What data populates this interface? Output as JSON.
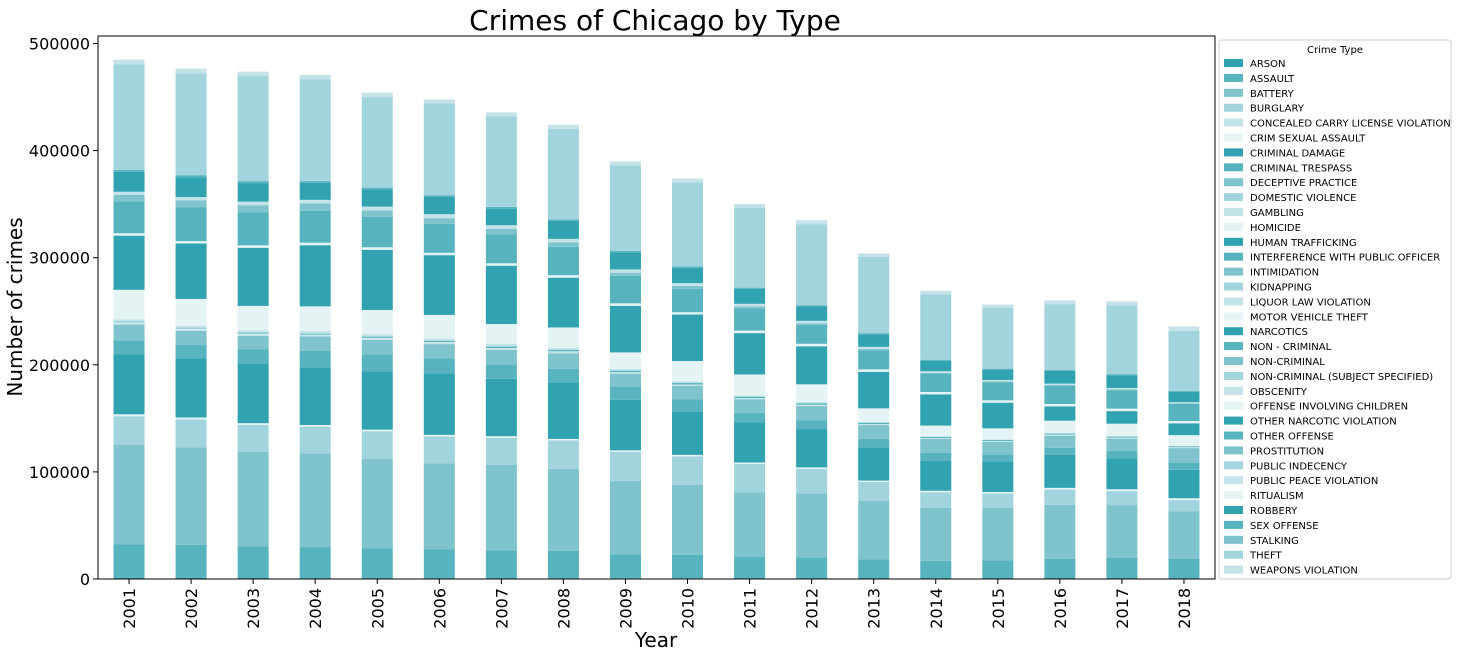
{
  "chart_data": {
    "type": "bar",
    "stacked": true,
    "title": "Crimes of Chicago by Type",
    "xlabel": "Year",
    "ylabel": "Number of crimes",
    "ylim": [
      0,
      507000
    ],
    "yticks": [
      0,
      100000,
      200000,
      300000,
      400000,
      500000
    ],
    "grid": false,
    "legend": {
      "title": "Crime Type",
      "placement": "right, outside plot"
    },
    "categories": [
      "2001",
      "2002",
      "2003",
      "2004",
      "2005",
      "2006",
      "2007",
      "2008",
      "2009",
      "2010",
      "2011",
      "2012",
      "2013",
      "2014",
      "2015",
      "2016",
      "2017",
      "2018"
    ],
    "series": [
      {
        "name": "ARSON",
        "color": "#30a2b0",
        "values": [
          1000,
          1000,
          900,
          800,
          800,
          800,
          800,
          800,
          700,
          600,
          500,
          500,
          400,
          400,
          400,
          400,
          400,
          350
        ]
      },
      {
        "name": "ASSAULT",
        "color": "#57b3be",
        "values": [
          31500,
          31000,
          29500,
          29000,
          27700,
          26800,
          26000,
          25500,
          22500,
          21900,
          20400,
          19800,
          17900,
          16500,
          17000,
          18500,
          19200,
          18400
        ]
      },
      {
        "name": "BATTERY",
        "color": "#7fc3cd",
        "values": [
          93000,
          91000,
          88500,
          87500,
          83500,
          80500,
          80000,
          76500,
          68500,
          65500,
          60000,
          59700,
          54500,
          49500,
          49200,
          50400,
          49400,
          44600
        ]
      },
      {
        "name": "BURGLARY",
        "color": "#a2d4dd",
        "values": [
          26500,
          26000,
          25000,
          25000,
          26000,
          25000,
          25000,
          26500,
          27000,
          26500,
          26500,
          22800,
          17900,
          14600,
          13200,
          14200,
          13000,
          10300
        ]
      },
      {
        "name": "CONCEALED CARRY LICENSE VIOLATION",
        "color": "#c3e3e8",
        "values": [
          0,
          0,
          0,
          0,
          0,
          0,
          0,
          0,
          0,
          0,
          0,
          0,
          0,
          100,
          150,
          200,
          250,
          350
        ]
      },
      {
        "name": "CRIM SEXUAL ASSAULT",
        "color": "#e4f4f5",
        "values": [
          1800,
          1800,
          1600,
          1500,
          1500,
          1500,
          1500,
          1500,
          1400,
          1400,
          1400,
          1400,
          1200,
          1300,
          1300,
          1400,
          1500,
          1400
        ]
      },
      {
        "name": "CRIMINAL DAMAGE",
        "color": "#30a2b0",
        "values": [
          55800,
          55200,
          55300,
          53800,
          54300,
          57200,
          53700,
          52800,
          47200,
          40600,
          37300,
          35800,
          30800,
          27800,
          28700,
          31000,
          29000,
          26500
        ]
      },
      {
        "name": "CRIMINAL TRESPASS",
        "color": "#57b3be",
        "values": [
          13200,
          12500,
          13800,
          15400,
          16000,
          14000,
          13400,
          12800,
          12000,
          11400,
          9000,
          8300,
          8200,
          7500,
          6500,
          6300,
          6900,
          6400
        ]
      },
      {
        "name": "DECEPTIVE PRACTICE",
        "color": "#7fc3cd",
        "values": [
          14900,
          13200,
          12500,
          13500,
          13500,
          13500,
          13400,
          14400,
          12300,
          12500,
          12500,
          13200,
          12800,
          13000,
          11600,
          11500,
          11500,
          13900
        ]
      },
      {
        "name": "DOMESTIC VIOLENCE",
        "color": "#a2d4dd",
        "values": [
          0,
          0,
          0,
          0,
          0,
          0,
          0,
          0,
          0,
          0,
          0,
          0,
          0,
          0,
          0,
          0,
          0,
          0
        ]
      },
      {
        "name": "GAMBLING",
        "color": "#c3e3e8",
        "values": [
          900,
          1000,
          1100,
          1200,
          1400,
          1400,
          1400,
          1200,
          900,
          700,
          700,
          600,
          400,
          300,
          200,
          200,
          200,
          150
        ]
      },
      {
        "name": "HOMICIDE",
        "color": "#e4f4f5",
        "values": [
          700,
          650,
          600,
          450,
          450,
          470,
          450,
          510,
          460,
          440,
          440,
          510,
          420,
          420,
          500,
          780,
          670,
          590
        ]
      },
      {
        "name": "HUMAN TRAFFICKING",
        "color": "#30a2b0",
        "values": [
          0,
          0,
          0,
          0,
          0,
          0,
          0,
          0,
          0,
          0,
          0,
          10,
          15,
          15,
          10,
          15,
          15,
          10
        ]
      },
      {
        "name": "INTERFERENCE WITH PUBLIC OFFICER",
        "color": "#57b3be",
        "values": [
          300,
          350,
          600,
          750,
          1000,
          1100,
          1300,
          1400,
          1500,
          1400,
          1400,
          1300,
          1200,
          1100,
          1000,
          900,
          900,
          850
        ]
      },
      {
        "name": "INTIMIDATION",
        "color": "#7fc3cd",
        "values": [
          200,
          200,
          200,
          200,
          200,
          200,
          200,
          200,
          170,
          160,
          150,
          150,
          140,
          140,
          140,
          160,
          170,
          170
        ]
      },
      {
        "name": "KIDNAPPING",
        "color": "#a2d4dd",
        "values": [
          1100,
          1100,
          1000,
          850,
          750,
          600,
          500,
          450,
          350,
          330,
          300,
          300,
          240,
          200,
          190,
          170,
          200,
          160
        ]
      },
      {
        "name": "LIQUOR LAW VIOLATION",
        "color": "#c3e3e8",
        "values": [
          1600,
          1400,
          1600,
          1800,
          1600,
          1700,
          1800,
          1400,
          1200,
          1100,
          1000,
          900,
          600,
          500,
          500,
          400,
          300,
          300
        ]
      },
      {
        "name": "MOTOR VEHICLE THEFT",
        "color": "#e4f4f5",
        "values": [
          27500,
          25100,
          22800,
          22800,
          22500,
          21800,
          18600,
          18900,
          15400,
          19000,
          19400,
          16500,
          12600,
          9900,
          10100,
          11300,
          11400,
          9900
        ]
      },
      {
        "name": "NARCOTICS",
        "color": "#30a2b0",
        "values": [
          50600,
          51800,
          54300,
          57100,
          56200,
          55800,
          54500,
          46500,
          43500,
          43400,
          38600,
          35500,
          34100,
          29100,
          23900,
          13300,
          11700,
          11000
        ]
      },
      {
        "name": "NON - CRIMINAL",
        "color": "#57b3be",
        "values": [
          0,
          0,
          0,
          0,
          0,
          0,
          0,
          0,
          0,
          0,
          0,
          10,
          10,
          5,
          0,
          0,
          0,
          0
        ]
      },
      {
        "name": "NON-CRIMINAL",
        "color": "#7fc3cd",
        "values": [
          0,
          0,
          0,
          0,
          0,
          0,
          0,
          0,
          0,
          0,
          0,
          0,
          50,
          80,
          100,
          120,
          90,
          100
        ]
      },
      {
        "name": "NON-CRIMINAL (SUBJECT SPECIFIED)",
        "color": "#a2d4dd",
        "values": [
          0,
          0,
          0,
          0,
          0,
          0,
          0,
          0,
          0,
          0,
          0,
          5,
          5,
          5,
          5,
          5,
          5,
          5
        ]
      },
      {
        "name": "OBSCENITY",
        "color": "#c3e3e8",
        "values": [
          30,
          20,
          20,
          30,
          30,
          30,
          30,
          30,
          20,
          30,
          30,
          30,
          30,
          20,
          40,
          50,
          60,
          60
        ]
      },
      {
        "name": "OFFENSE INVOLVING CHILDREN",
        "color": "#e4f4f5",
        "values": [
          2200,
          2100,
          2200,
          2300,
          2300,
          2200,
          2200,
          2300,
          2300,
          2100,
          2300,
          2300,
          2200,
          2100,
          2100,
          2100,
          2200,
          2000
        ]
      },
      {
        "name": "OTHER NARCOTIC VIOLATION",
        "color": "#30a2b0",
        "values": [
          10,
          10,
          10,
          10,
          10,
          10,
          10,
          10,
          10,
          10,
          10,
          10,
          10,
          10,
          10,
          10,
          10,
          10
        ]
      },
      {
        "name": "OTHER OFFENSE",
        "color": "#57b3be",
        "values": [
          29700,
          31800,
          31000,
          29700,
          28300,
          27100,
          26900,
          26500,
          25600,
          22000,
          20600,
          17500,
          17600,
          16800,
          17000,
          17100,
          17300,
          15900
        ]
      },
      {
        "name": "PROSTITUTION",
        "color": "#7fc3cd",
        "values": [
          6000,
          6400,
          6500,
          6900,
          6100,
          5200,
          5100,
          4100,
          3000,
          2500,
          2000,
          1600,
          1400,
          1000,
          600,
          600,
          700,
          500
        ]
      },
      {
        "name": "PUBLIC INDECENCY",
        "color": "#a2d4dd",
        "values": [
          20,
          20,
          20,
          20,
          20,
          20,
          20,
          20,
          20,
          20,
          20,
          20,
          20,
          20,
          20,
          20,
          20,
          20
        ]
      },
      {
        "name": "PUBLIC PEACE VIOLATION",
        "color": "#c3e3e8",
        "values": [
          3000,
          3000,
          3300,
          3400,
          3600,
          3700,
          3500,
          3300,
          3000,
          2700,
          2400,
          2300,
          2000,
          1600,
          1400,
          1300,
          1300,
          1200
        ]
      },
      {
        "name": "RITUALISM",
        "color": "#e4f4f5",
        "values": [
          10,
          5,
          5,
          5,
          5,
          5,
          5,
          5,
          5,
          5,
          5,
          5,
          5,
          5,
          5,
          5,
          5,
          5
        ]
      },
      {
        "name": "ROBBERY",
        "color": "#30a2b0",
        "values": [
          18500,
          18500,
          17300,
          15800,
          16000,
          16000,
          15500,
          16700,
          15900,
          14300,
          13900,
          13500,
          11800,
          9800,
          9600,
          11900,
          11900,
          9600
        ]
      },
      {
        "name": "SEX OFFENSE",
        "color": "#57b3be",
        "values": [
          2000,
          1900,
          1800,
          1700,
          1600,
          1500,
          1500,
          1400,
          1300,
          1200,
          1200,
          1100,
          1000,
          900,
          900,
          1000,
          1000,
          1000
        ]
      },
      {
        "name": "STALKING",
        "color": "#7fc3cd",
        "values": [
          200,
          200,
          200,
          200,
          200,
          200,
          200,
          200,
          200,
          200,
          200,
          200,
          180,
          180,
          170,
          180,
          190,
          180
        ]
      },
      {
        "name": "THEFT",
        "color": "#a2d4dd",
        "values": [
          98300,
          95000,
          97900,
          94700,
          84400,
          85600,
          84600,
          84400,
          79700,
          78200,
          74500,
          75400,
          71200,
          61100,
          56600,
          61100,
          63900,
          55800
        ]
      },
      {
        "name": "WEAPONS VIOLATION",
        "color": "#c3e3e8",
        "values": [
          4400,
          4300,
          4200,
          4300,
          4100,
          3800,
          3600,
          3800,
          3800,
          3700,
          3500,
          3700,
          3000,
          3100,
          3100,
          3500,
          3900,
          4100
        ]
      }
    ]
  }
}
